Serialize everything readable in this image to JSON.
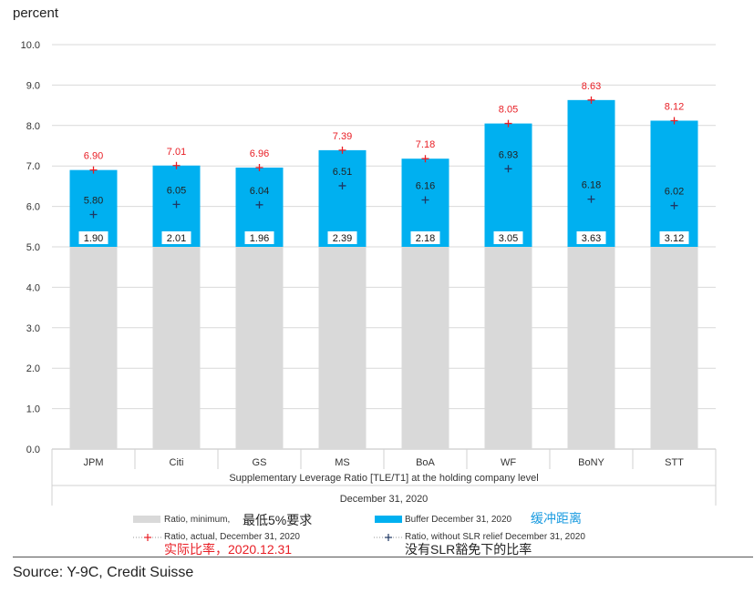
{
  "unit_label": "percent",
  "colors": {
    "minimum": "#d9d9d9",
    "buffer": "#00b0f0",
    "actual_marker": "#e81e25",
    "without_relief_marker": "#1f3864",
    "annotation_red": "#e81e25",
    "annotation_blue": "#1a9be0"
  },
  "chart_data": {
    "type": "bar",
    "stacked": true,
    "title": "",
    "ylabel": "percent",
    "ylim": [
      0,
      10
    ],
    "yticks": [
      "0.0",
      "1.0",
      "2.0",
      "3.0",
      "4.0",
      "5.0",
      "6.0",
      "7.0",
      "8.0",
      "9.0",
      "10.0"
    ],
    "categories": [
      "JPM",
      "Citi",
      "GS",
      "MS",
      "BoA",
      "WF",
      "BoNY",
      "STT"
    ],
    "xlabel": "Supplementary Leverage Ratio [TLE/T1] at the holding company level",
    "xlabel2": "December 31, 2020",
    "series": [
      {
        "name": "Ratio, minimum,",
        "kind": "bar",
        "values": [
          5,
          5,
          5,
          5,
          5,
          5,
          5,
          5
        ]
      },
      {
        "name": "Buffer December 31, 2020",
        "kind": "bar",
        "values": [
          1.9,
          2.01,
          1.96,
          2.39,
          2.18,
          3.05,
          3.63,
          3.12
        ],
        "labels": [
          "1.90",
          "2.01",
          "1.96",
          "2.39",
          "2.18",
          "3.05",
          "3.63",
          "3.12"
        ]
      },
      {
        "name": "Ratio, actual, December 31, 2020",
        "kind": "marker",
        "values": [
          6.9,
          7.01,
          6.96,
          7.39,
          7.18,
          8.05,
          8.63,
          8.12
        ],
        "labels": [
          "6.90",
          "7.01",
          "6.96",
          "7.39",
          "7.18",
          "8.05",
          "8.63",
          "8.12"
        ]
      },
      {
        "name": "Ratio, without SLR relief December 31, 2020",
        "kind": "marker",
        "values": [
          5.8,
          6.05,
          6.04,
          6.51,
          6.16,
          6.93,
          6.18,
          6.02
        ],
        "labels": [
          "5.80",
          "6.05",
          "6.04",
          "6.51",
          "6.16",
          "6.93",
          "6.18",
          "6.02"
        ]
      }
    ],
    "legend_position": "bottom"
  },
  "annotations": {
    "minimum": "最低5%要求",
    "buffer": "缓冲距离",
    "actual": "实际比率，2020.12.31",
    "without_relief": "没有SLR豁免下的比率"
  },
  "source": "Source: Y-9C, Credit Suisse"
}
